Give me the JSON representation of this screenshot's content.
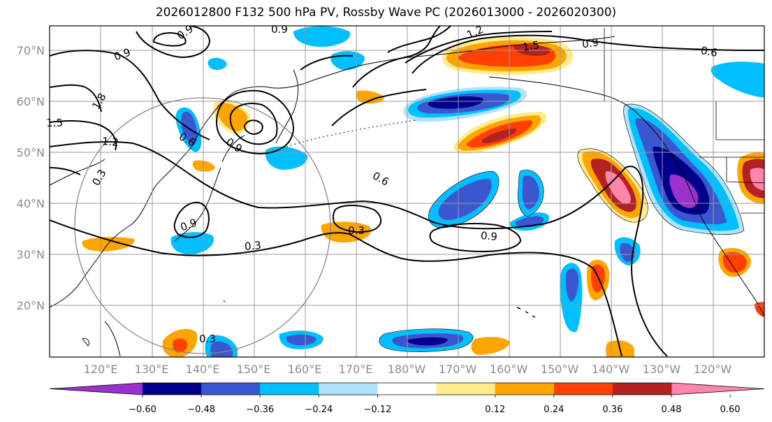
{
  "title": "2026012800 F132 500 hPa PV, Rossby Wave PC (2026013000 - 2026020300)",
  "map": {
    "lon_labels": [
      "120°E",
      "130°E",
      "140°E",
      "150°E",
      "160°E",
      "170°E",
      "180°W",
      "170°W",
      "160°W",
      "150°W",
      "140°W",
      "130°W",
      "120°W"
    ],
    "lat_labels": [
      "70°N",
      "60°N",
      "50°N",
      "40°N",
      "30°N",
      "20°N"
    ],
    "contour_labels": [
      "0.9",
      "0.9",
      "1.2",
      "1.5",
      "0.9",
      "0.6",
      "1.8",
      "1.5",
      "1.2",
      "0.6",
      "0.3",
      "0.9",
      "0.9",
      "0.6",
      "0.9",
      "0.3",
      "0.3",
      "0.9",
      "0.3"
    ],
    "colors": {
      "neg_060": "#9932cc",
      "neg_048": "#00008b",
      "neg_036": "#3a57d0",
      "neg_024": "#00bfff",
      "neg_012": "#afe3fa",
      "neutral": "#ffffff",
      "pos_012": "#ffeb8a",
      "pos_024": "#ffa500",
      "pos_036": "#ff4000",
      "pos_048": "#b22222",
      "pos_060": "#ff85ad"
    }
  },
  "colorbar": {
    "tick_labels": [
      "−0.60",
      "−0.48",
      "−0.36",
      "−0.24",
      "−0.12",
      "0.12",
      "0.24",
      "0.36",
      "0.48",
      "0.60"
    ],
    "colors": [
      "#9932cc",
      "#00008b",
      "#3a57d0",
      "#00bfff",
      "#afe3fa",
      "#ffffff",
      "#ffeb8a",
      "#ffa500",
      "#ff4000",
      "#b22222",
      "#ff85ad"
    ]
  }
}
